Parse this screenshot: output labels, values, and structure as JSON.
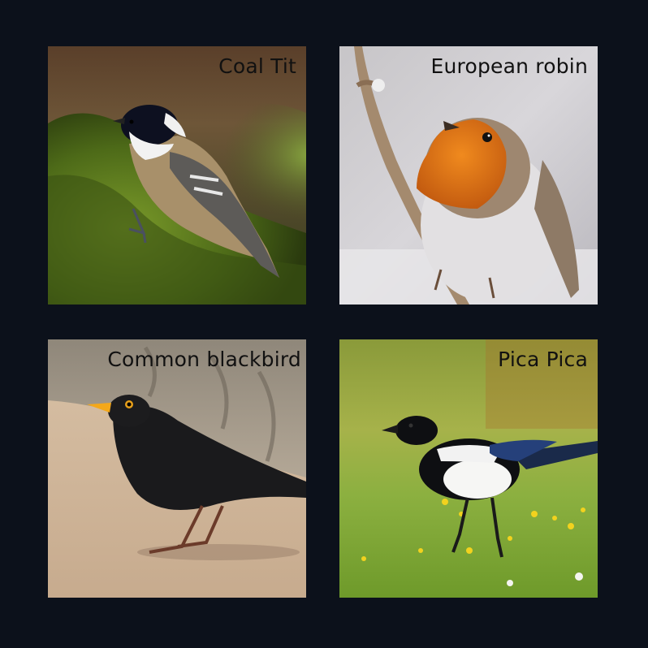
{
  "tiles": [
    {
      "id": "coal-tit",
      "caption": "Coal Tit"
    },
    {
      "id": "european-robin",
      "caption": "European robin"
    },
    {
      "id": "common-blackbird",
      "caption": "Common blackbird"
    },
    {
      "id": "pica-pica",
      "caption": "Pica Pica"
    }
  ],
  "colors": {
    "background": "#0c111b",
    "caption_text": "#111111"
  }
}
